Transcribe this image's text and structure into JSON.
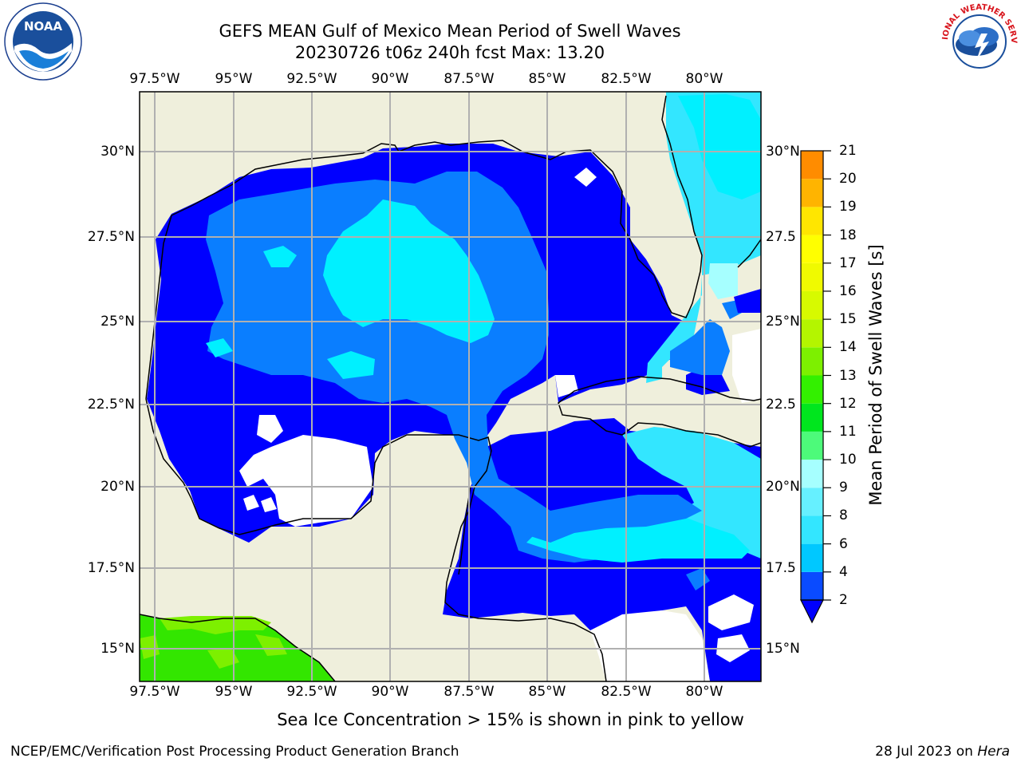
{
  "header": {
    "title_line1": "GEFS MEAN Gulf of Mexico Mean Period of Swell Waves",
    "title_line2": "20230726 t06z 240h fcst   Max: 13.20"
  },
  "map": {
    "lon_labels": [
      "97.5°W",
      "95°W",
      "92.5°W",
      "90°W",
      "87.5°W",
      "85°W",
      "82.5°W",
      "80°W"
    ],
    "lat_labels_left": [
      "30°N",
      "27.5°N",
      "25°N",
      "22.5°N",
      "20°N",
      "17.5°N",
      "15°N"
    ],
    "lat_labels_right": [
      "30°N",
      "27.5",
      "25°N",
      "22.5",
      "20°N",
      "17.5",
      "15°N"
    ]
  },
  "colorbar": {
    "title": "Mean Period of Swell Waves [s]",
    "ticks": [
      "21",
      "20",
      "19",
      "18",
      "17",
      "16",
      "15",
      "14",
      "13",
      "12",
      "11",
      "10",
      "9",
      "8",
      "6",
      "4",
      "2"
    ],
    "colors": [
      "#0a4bff",
      "#00c8ff",
      "#33e6ff",
      "#66f0ff",
      "#a6ffff",
      "#4dfa7a",
      "#00e61e",
      "#33f000",
      "#7df000",
      "#b4f500",
      "#d7fa00",
      "#f0fa00",
      "#ffff00",
      "#ffe600",
      "#ffb400",
      "#ff8c00",
      "#ff6400",
      "#ff4600",
      "#ff2800",
      "#ff0000"
    ],
    "underflow_color": "#0000ff"
  },
  "palette": {
    "land": "#efefdc",
    "band_2_4": "#0000ff",
    "band_4_6": "#0a7eff",
    "band_6_8": "#00f0ff",
    "band_8_9": "#33e6ff",
    "band_9_10": "#a6ffff",
    "band_green": "#33e600",
    "band_lightgreen": "#7df000"
  },
  "logos": {
    "left": "NOAA",
    "right": "NATIONAL WEATHER SERVICE"
  },
  "footer": {
    "note": "Sea Ice Concentration > 15% is shown in pink to yellow",
    "left": "NCEP/EMC/Verification Post Processing Product Generation Branch",
    "right_date": "28 Jul 2023 on ",
    "right_host": "Hera"
  }
}
